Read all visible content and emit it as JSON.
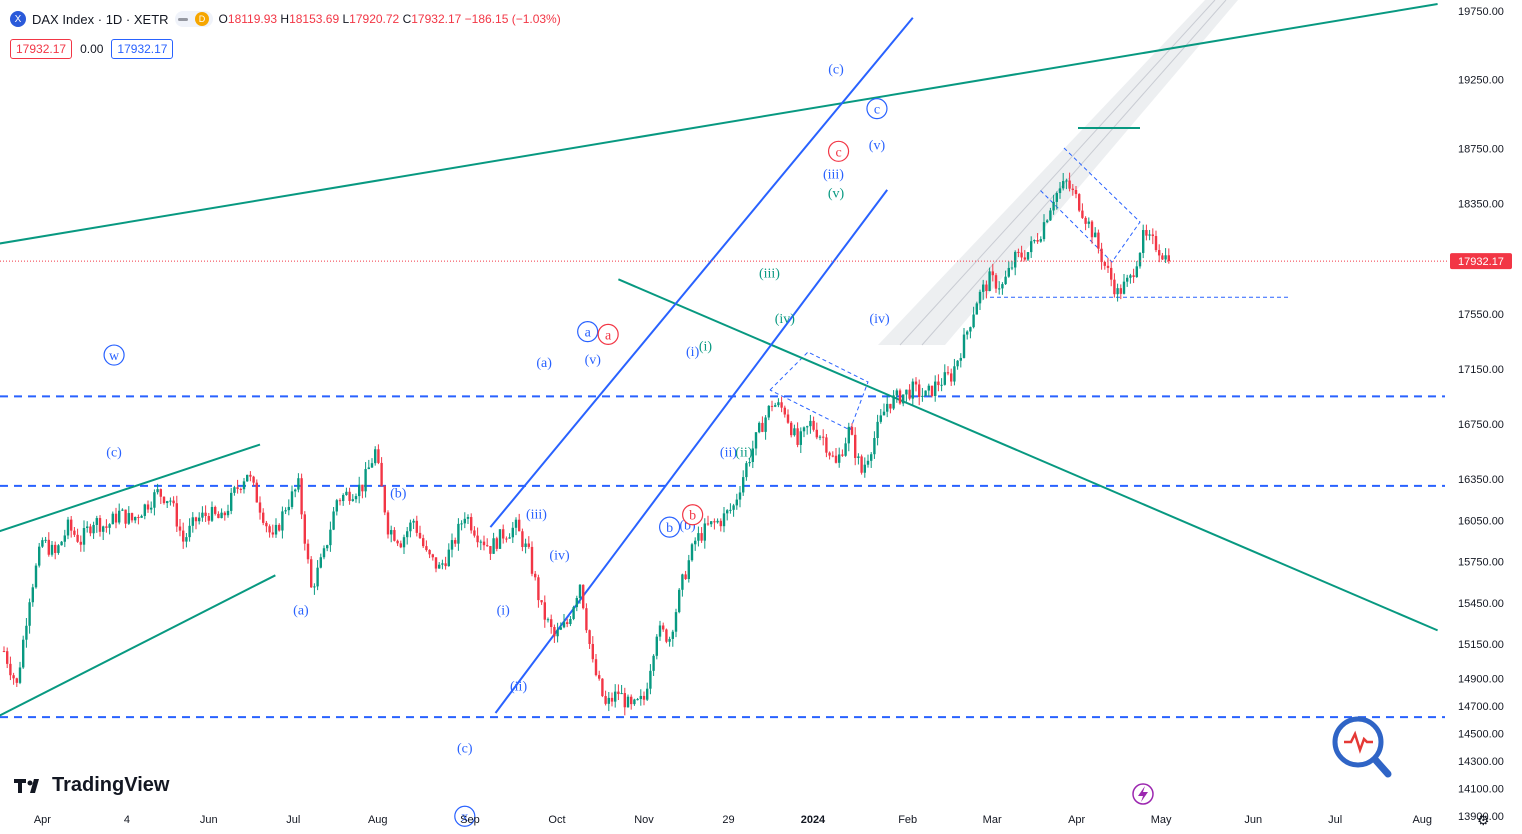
{
  "header": {
    "title": "DAX Index · 1D · XETR",
    "symbol_glyph": "X",
    "badge": "D",
    "open_label": "O",
    "open": "18119.93",
    "high_label": "H",
    "high": "18153.69",
    "low_label": "L",
    "low": "17920.72",
    "close_label": "C",
    "close": "17932.17",
    "change": "−186.15 (−1.03%)"
  },
  "quote": {
    "bid": "17932.17",
    "spread": "0.00",
    "ask": "17932.17"
  },
  "brand": "TradingView",
  "colors": {
    "up": "#089981",
    "down": "#f23645",
    "blue": "#2962ff",
    "green": "#089981",
    "label_blue": "#2962ff"
  },
  "chart_data": {
    "type": "candlestick",
    "instrument": "DAX Index",
    "interval": "1D",
    "exchange": "XETR",
    "ylim": [
      13800,
      19800
    ],
    "yticks": [
      19750,
      19250,
      18750,
      18350,
      17550,
      17150,
      16750,
      16350,
      16050,
      15750,
      15450,
      15150,
      14900,
      14700,
      14500,
      14300,
      14100,
      13900
    ],
    "x_tick_labels": [
      {
        "t": 1.5,
        "label": "Apr"
      },
      {
        "t": 4.8,
        "label": "4"
      },
      {
        "t": 8,
        "label": "Jun"
      },
      {
        "t": 11.3,
        "label": "Jul"
      },
      {
        "t": 14.6,
        "label": "Aug"
      },
      {
        "t": 18.2,
        "label": "Sep"
      },
      {
        "t": 21.6,
        "label": "Oct"
      },
      {
        "t": 25,
        "label": "Nov"
      },
      {
        "t": 28.3,
        "label": "29"
      },
      {
        "t": 31.6,
        "label": "2024"
      },
      {
        "t": 35.3,
        "label": "Feb"
      },
      {
        "t": 38.6,
        "label": "Mar"
      },
      {
        "t": 41.9,
        "label": "Apr"
      },
      {
        "t": 45.2,
        "label": "May"
      },
      {
        "t": 48.8,
        "label": "Jun"
      },
      {
        "t": 52,
        "label": "Jul"
      },
      {
        "t": 55.4,
        "label": "Aug"
      }
    ],
    "last_price": 17932.17,
    "price_path": [
      [
        0,
        15100
      ],
      [
        0.5,
        14850
      ],
      [
        1,
        15500
      ],
      [
        1.5,
        15900
      ],
      [
        2,
        15800
      ],
      [
        2.5,
        16000
      ],
      [
        3,
        15900
      ],
      [
        3.5,
        16050
      ],
      [
        4,
        16000
      ],
      [
        4.5,
        16100
      ],
      [
        5,
        16050
      ],
      [
        5.5,
        16150
      ],
      [
        6,
        16250
      ],
      [
        6.5,
        16200
      ],
      [
        7,
        15900
      ],
      [
        7.5,
        16050
      ],
      [
        8,
        16100
      ],
      [
        8.5,
        16050
      ],
      [
        9,
        16250
      ],
      [
        9.5,
        16400
      ],
      [
        10,
        16150
      ],
      [
        10.5,
        15900
      ],
      [
        11,
        16150
      ],
      [
        11.5,
        16300
      ],
      [
        12,
        15550
      ],
      [
        12.5,
        15800
      ],
      [
        13,
        16200
      ],
      [
        13.5,
        16250
      ],
      [
        14,
        16300
      ],
      [
        14.5,
        16550
      ],
      [
        15,
        16000
      ],
      [
        15.5,
        15900
      ],
      [
        16,
        16050
      ],
      [
        16.5,
        15800
      ],
      [
        17,
        15700
      ],
      [
        17.5,
        15850
      ],
      [
        18,
        16100
      ],
      [
        18.5,
        15950
      ],
      [
        19,
        15850
      ],
      [
        19.5,
        15950
      ],
      [
        20,
        16000
      ],
      [
        20.5,
        15800
      ],
      [
        21,
        15400
      ],
      [
        21.5,
        15200
      ],
      [
        22,
        15300
      ],
      [
        22.5,
        15600
      ],
      [
        23,
        15000
      ],
      [
        23.5,
        14700
      ],
      [
        24,
        14800
      ],
      [
        24.5,
        14680
      ],
      [
        25,
        14750
      ],
      [
        25.5,
        15250
      ],
      [
        26,
        15200
      ],
      [
        26.5,
        15600
      ],
      [
        27,
        15900
      ],
      [
        27.5,
        16000
      ],
      [
        28,
        16050
      ],
      [
        28.5,
        16150
      ],
      [
        29,
        16450
      ],
      [
        29.5,
        16700
      ],
      [
        30,
        16900
      ],
      [
        30.5,
        16850
      ],
      [
        31,
        16600
      ],
      [
        31.5,
        16750
      ],
      [
        32,
        16650
      ],
      [
        32.5,
        16450
      ],
      [
        33,
        16700
      ],
      [
        33.5,
        16400
      ],
      [
        34,
        16650
      ],
      [
        34.5,
        16900
      ],
      [
        35,
        16950
      ],
      [
        35.5,
        17000
      ],
      [
        36,
        16950
      ],
      [
        36.5,
        17050
      ],
      [
        37,
        17100
      ],
      [
        37.5,
        17350
      ],
      [
        38,
        17650
      ],
      [
        38.5,
        17800
      ],
      [
        39,
        17750
      ],
      [
        39.5,
        17950
      ],
      [
        40,
        18000
      ],
      [
        40.5,
        18150
      ],
      [
        41,
        18400
      ],
      [
        41.5,
        18500
      ],
      [
        42,
        18350
      ],
      [
        42.5,
        18150
      ],
      [
        43,
        17900
      ],
      [
        43.5,
        17700
      ],
      [
        44,
        17800
      ],
      [
        44.5,
        18100
      ],
      [
        45,
        18050
      ],
      [
        45.5,
        17932
      ]
    ],
    "horizontal_levels": [
      {
        "price": 16950,
        "style": "dashed",
        "color": "blue"
      },
      {
        "price": 16300,
        "style": "dashed",
        "color": "blue"
      },
      {
        "price": 14620,
        "style": "dashed",
        "color": "blue"
      },
      {
        "price": 17670,
        "style": "fine-dashed",
        "color": "blue"
      }
    ],
    "trendlines": [
      {
        "from": [
          -0.5,
          18050
        ],
        "to": [
          56,
          19800
        ],
        "color": "green"
      },
      {
        "from": [
          -0.5,
          15950
        ],
        "to": [
          10,
          16600
        ],
        "color": "green"
      },
      {
        "from": [
          -0.5,
          14600
        ],
        "to": [
          10.6,
          15650
        ],
        "color": "green"
      },
      {
        "from": [
          24,
          17800
        ],
        "to": [
          56,
          15250
        ],
        "color": "green"
      },
      {
        "from": [
          19,
          16000
        ],
        "to": [
          35.5,
          19700
        ],
        "color": "blue"
      },
      {
        "from": [
          19.2,
          14650
        ],
        "to": [
          34.5,
          18450
        ],
        "color": "blue"
      }
    ],
    "wave_labels": [
      {
        "t": 4.3,
        "price": 17250,
        "text": "w",
        "circle": true,
        "color": "blue"
      },
      {
        "t": 4.3,
        "price": 16550,
        "text": "(c)",
        "color": "blue"
      },
      {
        "t": 15.4,
        "price": 16250,
        "text": "(b)",
        "color": "blue"
      },
      {
        "t": 11.6,
        "price": 15400,
        "text": "(a)",
        "color": "blue"
      },
      {
        "t": 18.0,
        "price": 14400,
        "text": "(c)",
        "color": "blue"
      },
      {
        "t": 18.0,
        "price": 13900,
        "text": "x",
        "circle": true,
        "color": "blue"
      },
      {
        "t": 21.1,
        "price": 17200,
        "text": "(a)",
        "color": "blue"
      },
      {
        "t": 22.8,
        "price": 17420,
        "text": "a",
        "circle": true,
        "color": "blue"
      },
      {
        "t": 23.6,
        "price": 17400,
        "text": "a",
        "circle": true,
        "color": "red"
      },
      {
        "t": 23.0,
        "price": 17220,
        "text": "(v)",
        "color": "blue"
      },
      {
        "t": 20.8,
        "price": 16100,
        "text": "(iii)",
        "color": "blue"
      },
      {
        "t": 21.7,
        "price": 15800,
        "text": "(iv)",
        "color": "blue"
      },
      {
        "t": 19.5,
        "price": 15400,
        "text": "(i)",
        "color": "blue"
      },
      {
        "t": 20.1,
        "price": 14850,
        "text": "(ii)",
        "color": "blue"
      },
      {
        "t": 26.0,
        "price": 16000,
        "text": "b",
        "circle": true,
        "color": "blue"
      },
      {
        "t": 26.7,
        "price": 16020,
        "text": "(b)",
        "color": "blue"
      },
      {
        "t": 26.9,
        "price": 16090,
        "text": "b",
        "circle": true,
        "color": "red"
      },
      {
        "t": 26.9,
        "price": 17280,
        "text": "(i)",
        "color": "blue"
      },
      {
        "t": 27.4,
        "price": 17320,
        "text": "(i)",
        "color": "green"
      },
      {
        "t": 28.3,
        "price": 16550,
        "text": "(ii)",
        "color": "blue"
      },
      {
        "t": 28.9,
        "price": 16550,
        "text": "(ii)",
        "color": "green"
      },
      {
        "t": 29.9,
        "price": 17850,
        "text": "(iii)",
        "color": "green"
      },
      {
        "t": 30.5,
        "price": 17520,
        "text": "(iv)",
        "color": "green"
      },
      {
        "t": 32.4,
        "price": 18570,
        "text": "(iii)",
        "color": "blue"
      },
      {
        "t": 32.5,
        "price": 18430,
        "text": "(v)",
        "color": "green"
      },
      {
        "t": 32.6,
        "price": 18730,
        "text": "c",
        "circle": true,
        "color": "red"
      },
      {
        "t": 32.5,
        "price": 19330,
        "text": "(c)",
        "color": "blue"
      },
      {
        "t": 34.1,
        "price": 19040,
        "text": "c",
        "circle": true,
        "color": "blue"
      },
      {
        "t": 34.1,
        "price": 18780,
        "text": "(v)",
        "color": "blue"
      },
      {
        "t": 34.2,
        "price": 17520,
        "text": "(iv)",
        "color": "blue"
      }
    ]
  }
}
